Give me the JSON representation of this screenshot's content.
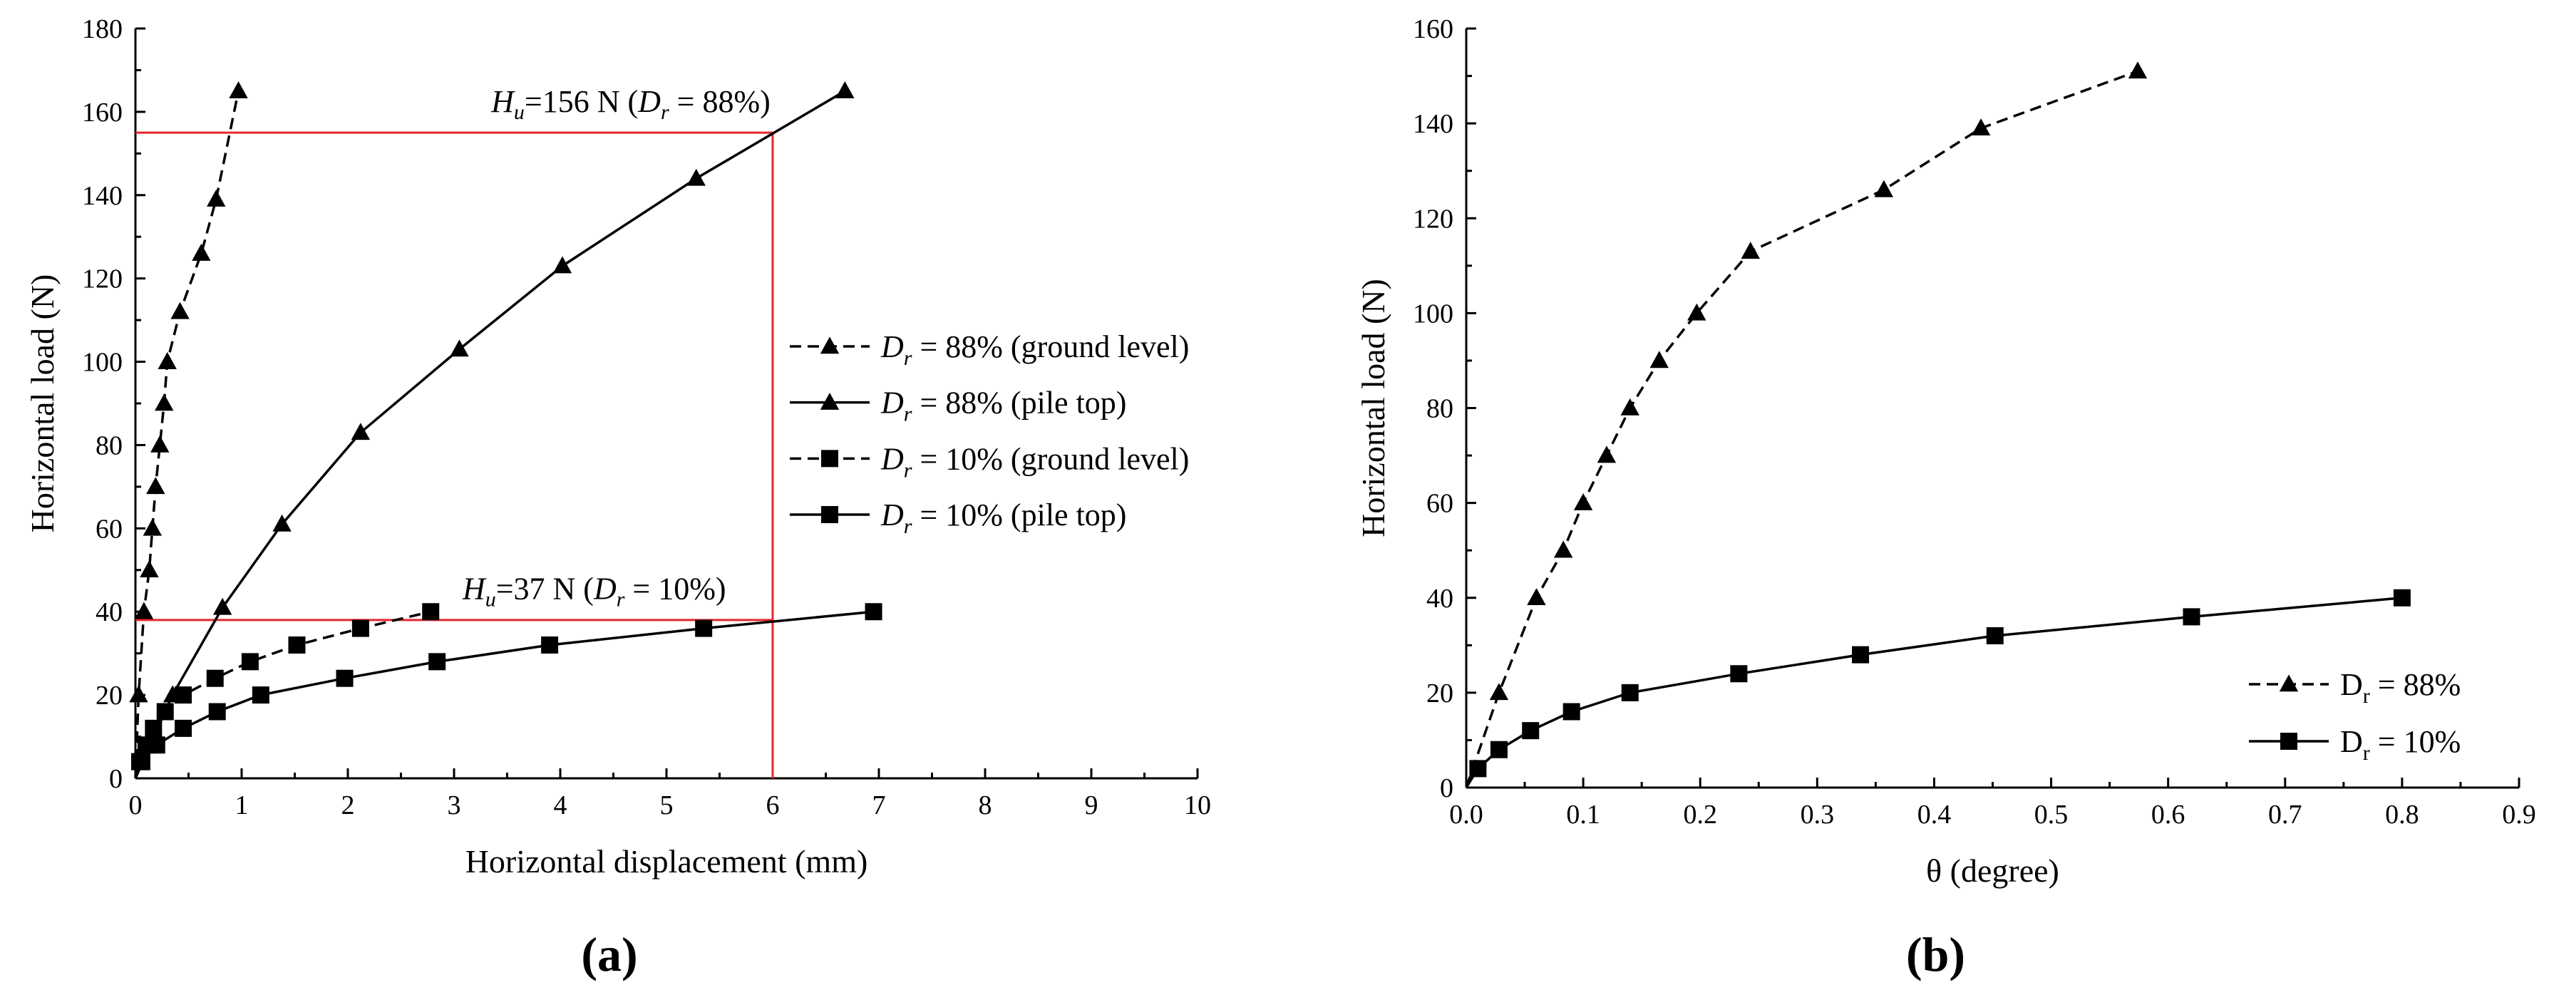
{
  "chart_data": [
    {
      "panel": "(a)",
      "type": "line",
      "xlabel": "Horizontal displacement (mm)",
      "ylabel": "Horizontal load (N)",
      "xlim": [
        0,
        10
      ],
      "ylim": [
        0,
        180
      ],
      "xticks": [
        0,
        1,
        2,
        3,
        4,
        5,
        6,
        7,
        8,
        9,
        10
      ],
      "yticks": [
        0,
        20,
        40,
        60,
        80,
        100,
        120,
        140,
        160,
        180
      ],
      "grid": false,
      "legend_position": "right",
      "series": [
        {
          "name": "Dr = 88% (ground level)",
          "legend_main": "D",
          "legend_sub": "r",
          "legend_rest": " = 88% (ground level)",
          "line": "dashed",
          "marker": "triangle",
          "x": [
            0,
            0.03,
            0.08,
            0.13,
            0.16,
            0.19,
            0.23,
            0.27,
            0.3,
            0.42,
            0.62,
            0.76,
            0.97
          ],
          "y": [
            0,
            20,
            40,
            50,
            60,
            70,
            80,
            90,
            100,
            112,
            126,
            139,
            165
          ]
        },
        {
          "name": "Dr = 88% (pile top)",
          "legend_main": "D",
          "legend_sub": "r",
          "legend_rest": " = 88% (pile top)",
          "line": "solid",
          "marker": "triangle",
          "x": [
            0,
            0.35,
            0.82,
            1.38,
            2.12,
            3.05,
            4.02,
            5.28,
            6.68
          ],
          "y": [
            0,
            20,
            41,
            61,
            83,
            103,
            123,
            144,
            165
          ]
        },
        {
          "name": "Dr = 10% (ground level)",
          "legend_main": "D",
          "legend_sub": "r",
          "legend_rest": " = 10% (ground level)",
          "line": "dashed",
          "marker": "square",
          "x": [
            0,
            0.04,
            0.1,
            0.17,
            0.28,
            0.45,
            0.75,
            1.08,
            1.52,
            2.12,
            2.78
          ],
          "y": [
            0,
            4,
            8,
            12,
            16,
            20,
            24,
            28,
            32,
            36,
            40
          ]
        },
        {
          "name": "Dr = 10% (pile top)",
          "legend_main": "D",
          "legend_sub": "r",
          "legend_rest": " = 10% (pile top)",
          "line": "solid",
          "marker": "square",
          "x": [
            0,
            0.06,
            0.2,
            0.45,
            0.77,
            1.18,
            1.97,
            2.84,
            3.9,
            5.35,
            6.95
          ],
          "y": [
            0,
            4,
            8,
            12,
            16,
            20,
            24,
            28,
            32,
            36,
            40
          ]
        }
      ],
      "reference_lines": [
        {
          "type": "horizontal",
          "y": 155,
          "x_from": 0,
          "x_to": 6,
          "color": "#e8262e"
        },
        {
          "type": "horizontal",
          "y": 38,
          "x_from": 0,
          "x_to": 6,
          "color": "#e8262e"
        },
        {
          "type": "vertical",
          "x": 6,
          "y_from": 0,
          "y_to": 155,
          "color": "#e8262e"
        }
      ],
      "annotations": [
        {
          "main": "H",
          "sub": "u",
          "mid": "=156 N (",
          "d": "D",
          "dsub": "r",
          "tail": " = 88%)",
          "at_x": 3.35,
          "at_y": 160
        },
        {
          "main": "H",
          "sub": "u",
          "mid": "=37 N (",
          "d": "D",
          "dsub": "r",
          "tail": " = 10%)",
          "at_x": 3.08,
          "at_y": 43
        }
      ]
    },
    {
      "panel": "(b)",
      "type": "line",
      "xlabel": "θ (degree)",
      "ylabel": "Horizontal load (N)",
      "xlim": [
        0,
        0.9
      ],
      "ylim": [
        0,
        160
      ],
      "xticks": [
        0.0,
        0.1,
        0.2,
        0.3,
        0.4,
        0.5,
        0.6,
        0.7,
        0.8,
        0.9
      ],
      "xtick_labels": [
        "0.0",
        "0.1",
        "0.2",
        "0.3",
        "0.4",
        "0.5",
        "0.6",
        "0.7",
        "0.8",
        "0.9"
      ],
      "yticks": [
        0,
        20,
        40,
        60,
        80,
        100,
        120,
        140,
        160
      ],
      "grid": false,
      "legend_position": "bottom-right",
      "series": [
        {
          "name": "Dr = 88%",
          "legend_main": "D",
          "legend_sub": "r",
          "legend_rest": " = 88%",
          "line": "dashed",
          "marker": "triangle",
          "x": [
            0,
            0.028,
            0.06,
            0.083,
            0.1,
            0.12,
            0.14,
            0.165,
            0.197,
            0.243,
            0.357,
            0.44,
            0.574
          ],
          "y": [
            0,
            20,
            40,
            50,
            60,
            70,
            80,
            90,
            100,
            113,
            126,
            139,
            151
          ]
        },
        {
          "name": "Dr = 10%",
          "legend_main": "D",
          "legend_sub": "r",
          "legend_rest": " = 10%",
          "line": "solid",
          "marker": "square",
          "x": [
            0,
            0.01,
            0.028,
            0.055,
            0.09,
            0.14,
            0.233,
            0.337,
            0.452,
            0.62,
            0.8
          ],
          "y": [
            0,
            4,
            8,
            12,
            16,
            20,
            24,
            28,
            32,
            36,
            40
          ]
        }
      ]
    }
  ]
}
